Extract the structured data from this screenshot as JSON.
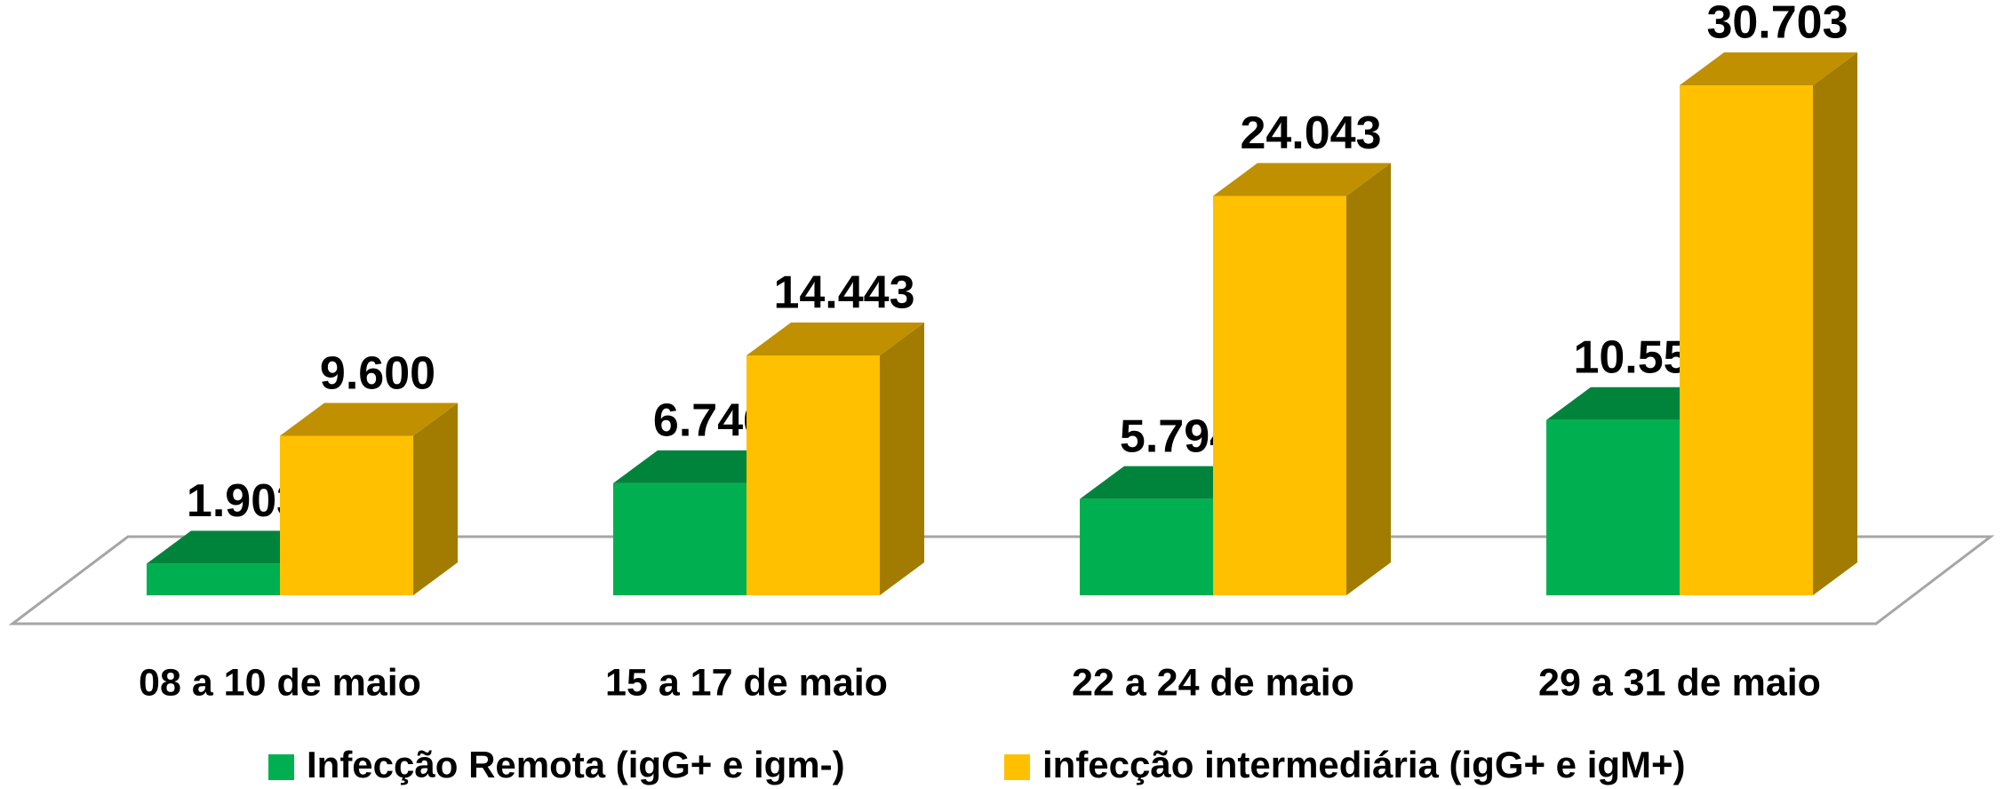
{
  "chart_data": {
    "type": "bar3d",
    "categories": [
      "08 a 10 de maio",
      "15 a 17 de maio",
      "22 a 24 de maio",
      "29 a 31 de maio"
    ],
    "series": [
      {
        "name": "Infecção Remota (igG+ e igm-)",
        "color": "#00b050",
        "top_color": "#00843c",
        "side_color": "#006b30",
        "values": [
          1903,
          6746,
          5794,
          10551
        ],
        "value_labels": [
          "1.903",
          "6.746",
          "5.794",
          "10.551"
        ]
      },
      {
        "name": "infecção intermediária (igG+ e igM+)",
        "color": "#ffc000",
        "top_color": "#c09000",
        "side_color": "#a27c00",
        "values": [
          9600,
          14443,
          24043,
          30703
        ],
        "value_labels": [
          "9.600",
          "14.443",
          "24.043",
          "30.703"
        ]
      }
    ],
    "legend": "bottom"
  }
}
